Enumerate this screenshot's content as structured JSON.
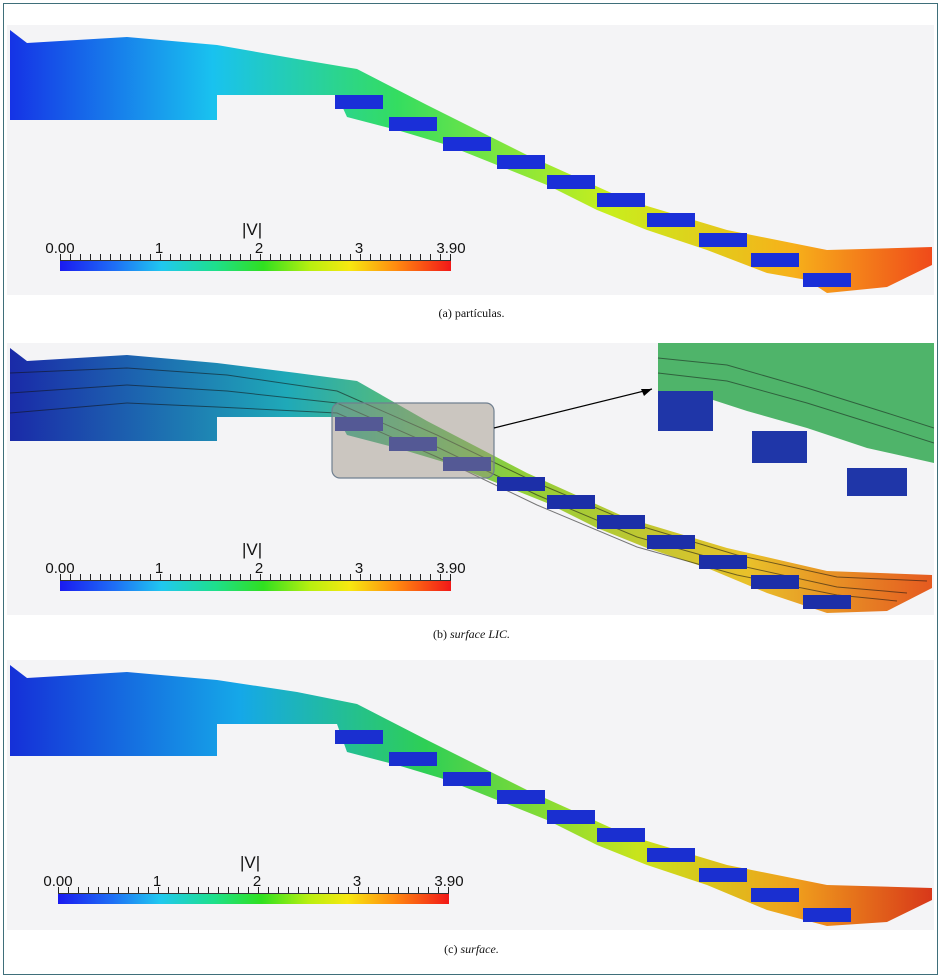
{
  "colorbar": {
    "title": "|V|",
    "min_label": "0.00",
    "max_label": "3.90",
    "ticks": [
      "1",
      "2",
      "3"
    ]
  },
  "panels": [
    {
      "caption_label": "(a)",
      "caption_text": "partículas."
    },
    {
      "caption_label": "(b)",
      "caption_text": "surface LIC."
    },
    {
      "caption_label": "(c)",
      "caption_text": "surface."
    }
  ],
  "colors": {
    "frame": "#3f6f7a",
    "low": "#1a1af0",
    "mid": "#30e020",
    "high": "#f21818"
  }
}
